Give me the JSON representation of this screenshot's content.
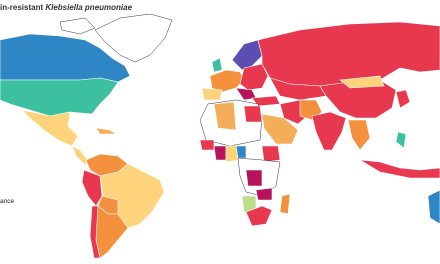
{
  "header": {
    "title_prefix": "in-resistant ",
    "title_italic": "Klebsiella pneumoniae"
  },
  "legend": {
    "fragment": "ance"
  }
}
